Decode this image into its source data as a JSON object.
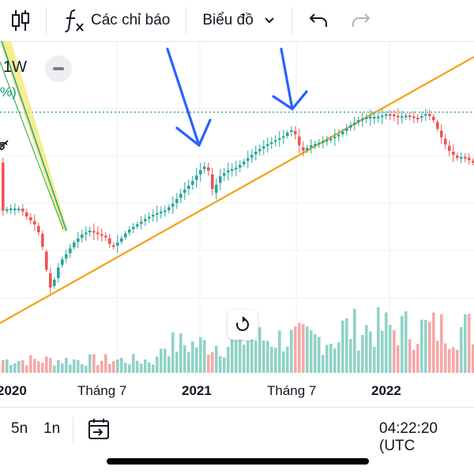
{
  "toolbar": {
    "indicators_label": "Các chỉ báo",
    "chart_type_label": "Biểu đồ"
  },
  "chart": {
    "interval_label": "1W",
    "percent_label": "%)",
    "x_axis_labels": [
      "2020",
      "Tháng 7",
      "2021",
      "Tháng 7",
      "2022"
    ]
  },
  "bottom_bar": {
    "range_5y": "5n",
    "range_1y": "1n",
    "time": "04:22:20 (UTC"
  },
  "colors": {
    "up": "#26a69a",
    "down": "#ef5350",
    "vol_up": "#8fd3c6",
    "vol_down": "#f7a8a8",
    "trendline": "#f5a623",
    "arrow": "#2962ff",
    "dotted_line": "#089981"
  }
}
